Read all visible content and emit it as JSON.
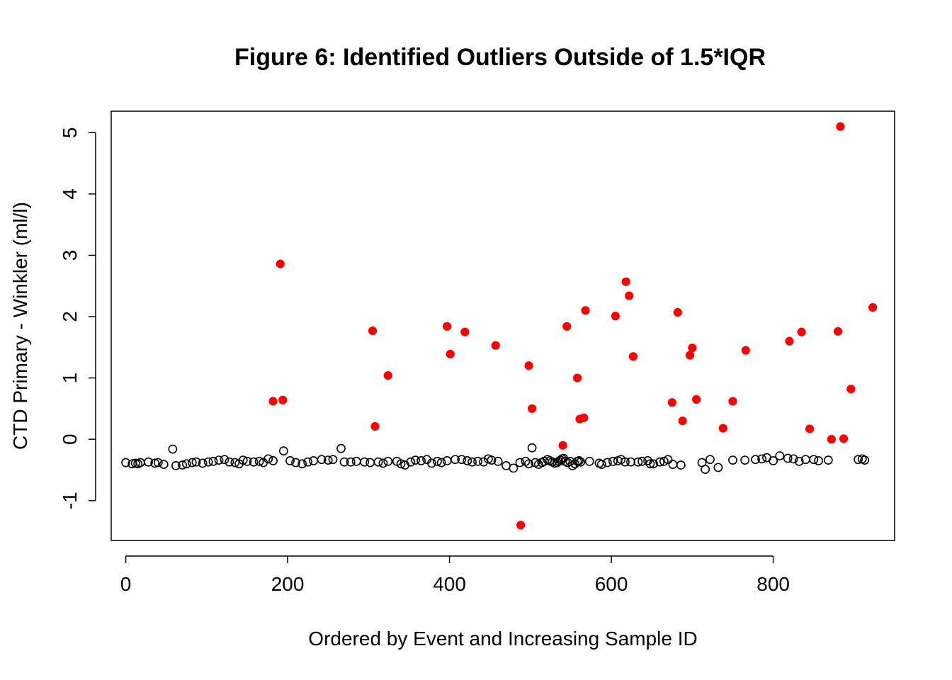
{
  "chart_data": {
    "type": "scatter",
    "title": "Figure 6: Identified Outliers Outside of 1.5*IQR",
    "xlabel": "Ordered by Event and Increasing Sample ID",
    "ylabel": "CTD Primary - Winkler (ml/l)",
    "xlim": [
      -18,
      950
    ],
    "ylim": [
      -1.65,
      5.35
    ],
    "x_ticks": [
      0,
      200,
      400,
      600,
      800
    ],
    "x_tick_labels": [
      "0",
      "200",
      "400",
      "600",
      "800"
    ],
    "y_ticks": [
      -1,
      0,
      1,
      2,
      3,
      4,
      5
    ],
    "y_tick_labels": [
      "-1",
      "0",
      "1",
      "2",
      "3",
      "4",
      "5"
    ],
    "grid": false,
    "legend": "none",
    "series": [
      {
        "style": "open-circle",
        "color": "#000000",
        "points": [
          [
            0,
            -0.38
          ],
          [
            8,
            -0.4
          ],
          [
            12,
            -0.39
          ],
          [
            15,
            -0.4
          ],
          [
            18,
            -0.38
          ],
          [
            28,
            -0.37
          ],
          [
            36,
            -0.39
          ],
          [
            40,
            -0.38
          ],
          [
            47,
            -0.41
          ],
          [
            58,
            -0.16
          ],
          [
            62,
            -0.43
          ],
          [
            70,
            -0.42
          ],
          [
            75,
            -0.4
          ],
          [
            82,
            -0.38
          ],
          [
            87,
            -0.37
          ],
          [
            95,
            -0.39
          ],
          [
            102,
            -0.37
          ],
          [
            108,
            -0.36
          ],
          [
            115,
            -0.34
          ],
          [
            122,
            -0.33
          ],
          [
            128,
            -0.37
          ],
          [
            135,
            -0.38
          ],
          [
            140,
            -0.4
          ],
          [
            145,
            -0.34
          ],
          [
            150,
            -0.36
          ],
          [
            158,
            -0.37
          ],
          [
            165,
            -0.36
          ],
          [
            170,
            -0.38
          ],
          [
            176,
            -0.32
          ],
          [
            182,
            -0.35
          ],
          [
            195,
            -0.19
          ],
          [
            203,
            -0.35
          ],
          [
            210,
            -0.38
          ],
          [
            218,
            -0.4
          ],
          [
            225,
            -0.37
          ],
          [
            232,
            -0.35
          ],
          [
            242,
            -0.33
          ],
          [
            250,
            -0.34
          ],
          [
            256,
            -0.33
          ],
          [
            266,
            -0.15
          ],
          [
            270,
            -0.37
          ],
          [
            278,
            -0.37
          ],
          [
            285,
            -0.36
          ],
          [
            295,
            -0.37
          ],
          [
            302,
            -0.38
          ],
          [
            312,
            -0.37
          ],
          [
            318,
            -0.39
          ],
          [
            324,
            -0.36
          ],
          [
            335,
            -0.36
          ],
          [
            340,
            -0.4
          ],
          [
            345,
            -0.42
          ],
          [
            352,
            -0.37
          ],
          [
            358,
            -0.34
          ],
          [
            365,
            -0.35
          ],
          [
            372,
            -0.33
          ],
          [
            378,
            -0.39
          ],
          [
            385,
            -0.36
          ],
          [
            390,
            -0.38
          ],
          [
            397,
            -0.35
          ],
          [
            407,
            -0.33
          ],
          [
            415,
            -0.33
          ],
          [
            422,
            -0.35
          ],
          [
            428,
            -0.37
          ],
          [
            435,
            -0.36
          ],
          [
            442,
            -0.37
          ],
          [
            448,
            -0.32
          ],
          [
            452,
            -0.34
          ],
          [
            460,
            -0.36
          ],
          [
            470,
            -0.43
          ],
          [
            479,
            -0.47
          ],
          [
            487,
            -0.38
          ],
          [
            494,
            -0.36
          ],
          [
            498,
            -0.4
          ],
          [
            502,
            -0.14
          ],
          [
            506,
            -0.38
          ],
          [
            510,
            -0.41
          ],
          [
            514,
            -0.38
          ],
          [
            517,
            -0.36
          ],
          [
            521,
            -0.33
          ],
          [
            524,
            -0.35
          ],
          [
            527,
            -0.37
          ],
          [
            530,
            -0.39
          ],
          [
            533,
            -0.38
          ],
          [
            535,
            -0.36
          ],
          [
            537,
            -0.34
          ],
          [
            539,
            -0.32
          ],
          [
            541,
            -0.31
          ],
          [
            543,
            -0.36
          ],
          [
            546,
            -0.38
          ],
          [
            549,
            -0.36
          ],
          [
            552,
            -0.43
          ],
          [
            555,
            -0.4
          ],
          [
            558,
            -0.36
          ],
          [
            560,
            -0.35
          ],
          [
            562,
            -0.37
          ],
          [
            573,
            -0.36
          ],
          [
            585,
            -0.39
          ],
          [
            588,
            -0.41
          ],
          [
            595,
            -0.38
          ],
          [
            602,
            -0.36
          ],
          [
            608,
            -0.35
          ],
          [
            612,
            -0.33
          ],
          [
            617,
            -0.37
          ],
          [
            624,
            -0.37
          ],
          [
            633,
            -0.37
          ],
          [
            638,
            -0.36
          ],
          [
            645,
            -0.35
          ],
          [
            648,
            -0.4
          ],
          [
            652,
            -0.4
          ],
          [
            660,
            -0.37
          ],
          [
            665,
            -0.36
          ],
          [
            670,
            -0.33
          ],
          [
            676,
            -0.41
          ],
          [
            686,
            -0.42
          ],
          [
            712,
            -0.38
          ],
          [
            716,
            -0.49
          ],
          [
            722,
            -0.33
          ],
          [
            732,
            -0.46
          ],
          [
            750,
            -0.34
          ],
          [
            765,
            -0.34
          ],
          [
            778,
            -0.33
          ],
          [
            786,
            -0.32
          ],
          [
            792,
            -0.3
          ],
          [
            800,
            -0.35
          ],
          [
            808,
            -0.27
          ],
          [
            818,
            -0.31
          ],
          [
            825,
            -0.32
          ],
          [
            832,
            -0.36
          ],
          [
            840,
            -0.33
          ],
          [
            850,
            -0.33
          ],
          [
            856,
            -0.35
          ],
          [
            868,
            -0.34
          ],
          [
            905,
            -0.33
          ],
          [
            910,
            -0.32
          ],
          [
            913,
            -0.34
          ]
        ]
      },
      {
        "style": "filled-circle",
        "color": "#ff0000",
        "points": [
          [
            182,
            0.62
          ],
          [
            191,
            2.86
          ],
          [
            194,
            0.64
          ],
          [
            305,
            1.77
          ],
          [
            308,
            0.21
          ],
          [
            324,
            1.04
          ],
          [
            397,
            1.84
          ],
          [
            401,
            1.39
          ],
          [
            419,
            1.75
          ],
          [
            457,
            1.53
          ],
          [
            488,
            -1.4
          ],
          [
            498,
            1.2
          ],
          [
            502,
            0.5
          ],
          [
            540,
            -0.1
          ],
          [
            545,
            1.84
          ],
          [
            558,
            1.0
          ],
          [
            561,
            0.33
          ],
          [
            566,
            0.35
          ],
          [
            568,
            2.1
          ],
          [
            605,
            2.01
          ],
          [
            618,
            2.57
          ],
          [
            622,
            2.34
          ],
          [
            627,
            1.35
          ],
          [
            675,
            0.6
          ],
          [
            682,
            2.07
          ],
          [
            688,
            0.3
          ],
          [
            697,
            1.37
          ],
          [
            700,
            1.49
          ],
          [
            705,
            0.65
          ],
          [
            738,
            0.18
          ],
          [
            750,
            0.62
          ],
          [
            766,
            1.45
          ],
          [
            820,
            1.6
          ],
          [
            835,
            1.75
          ],
          [
            845,
            0.17
          ],
          [
            872,
            0.0
          ],
          [
            880,
            1.76
          ],
          [
            883,
            5.1
          ],
          [
            887,
            0.01
          ],
          [
            896,
            0.82
          ],
          [
            923,
            2.15
          ]
        ]
      }
    ]
  }
}
